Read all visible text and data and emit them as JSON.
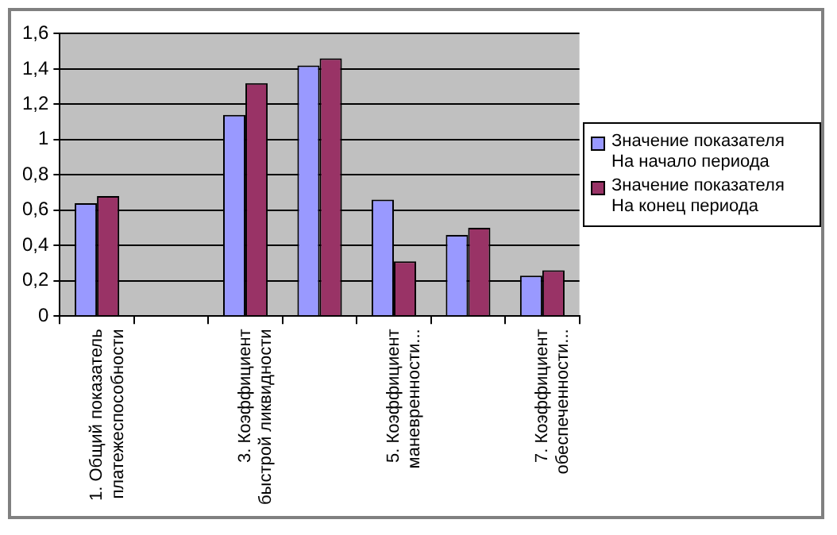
{
  "chart_data": {
    "type": "bar",
    "categories": [
      "1. Общий показатель\nплатежеспособности",
      null,
      "3. Коэффициент\nбыстрой ликвидности",
      null,
      "5. Коэффициент\nманевренности...",
      null,
      "7. Коэффициент\nобеспеченности..."
    ],
    "series": [
      {
        "name": "Значение показателя\nНа начало периода",
        "color": "#9999ff",
        "values": [
          0.64,
          null,
          1.14,
          1.42,
          0.66,
          0.46,
          0.23
        ]
      },
      {
        "name": "Значение показателя\nНа конец периода",
        "color": "#993366",
        "values": [
          0.68,
          null,
          1.32,
          1.46,
          0.31,
          0.5,
          0.26
        ]
      }
    ],
    "ylim": [
      0,
      1.6
    ],
    "yticks": [
      0,
      {
        "value": 0.2,
        "label": "0,2"
      },
      {
        "value": 0.4,
        "label": "0,4"
      },
      {
        "value": 0.6,
        "label": "0,6"
      },
      {
        "value": 0.8,
        "label": "0,8"
      },
      1,
      {
        "value": 1.2,
        "label": "1,2"
      },
      {
        "value": 1.4,
        "label": "1,4"
      },
      {
        "value": 1.6,
        "label": "1,6"
      }
    ],
    "grid": "y",
    "legend": "right"
  }
}
